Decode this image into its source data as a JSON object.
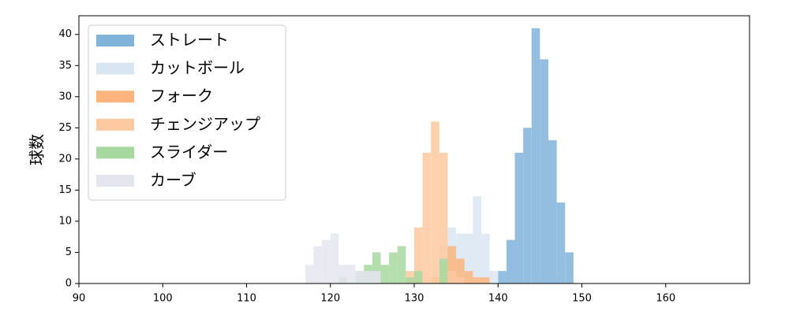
{
  "chart_data": {
    "type": "histogram",
    "y_label": "球数",
    "xlim": [
      90,
      170
    ],
    "xticks": [
      90,
      100,
      110,
      120,
      130,
      140,
      150,
      160
    ],
    "ylim": [
      0,
      43
    ],
    "yticks": [
      0,
      5,
      10,
      15,
      20,
      25,
      30,
      35,
      40
    ],
    "legend": "upper left",
    "series": [
      {
        "name": "ストレート",
        "color": "#80b3d9",
        "bins": [
          140,
          141,
          142,
          143,
          144,
          145,
          146,
          147,
          148,
          149
        ],
        "values": [
          2,
          7,
          21,
          25,
          41,
          36,
          23,
          13,
          5
        ]
      },
      {
        "name": "カットボール",
        "color": "#d9e6f2",
        "bins": [
          133,
          134,
          135,
          136,
          137,
          138,
          139,
          140
        ],
        "values": [
          6,
          9,
          8,
          8,
          14,
          8,
          2
        ]
      },
      {
        "name": "フォーク",
        "color": "#fdb57d",
        "bins": [
          132,
          133,
          134,
          135,
          136,
          137,
          138,
          139
        ],
        "values": [
          1,
          2,
          6,
          4,
          2,
          1,
          1
        ]
      },
      {
        "name": "チェンジアップ",
        "color": "#fdc9a0",
        "bins": [
          129,
          130,
          131,
          132,
          133,
          134,
          135,
          136
        ],
        "values": [
          2,
          9,
          21,
          26,
          21,
          2,
          1
        ]
      },
      {
        "name": "スライダー",
        "color": "#a7d8a0",
        "bins": [
          121,
          122,
          123,
          124,
          125,
          126,
          127,
          128,
          129,
          130,
          131,
          132,
          133,
          134
        ],
        "values": [
          1,
          0,
          2,
          3,
          5,
          3,
          5,
          6,
          1,
          2,
          0,
          0,
          4
        ]
      },
      {
        "name": "カーブ",
        "color": "#e5e5f0",
        "bins": [
          117,
          118,
          119,
          120,
          121,
          122,
          123,
          124,
          125,
          126
        ],
        "values": [
          3,
          6,
          7,
          8,
          3,
          3,
          2,
          2,
          2
        ]
      }
    ]
  }
}
